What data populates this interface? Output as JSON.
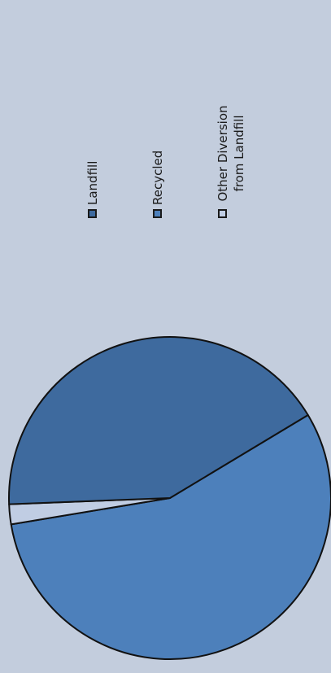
{
  "chart_data": {
    "type": "pie",
    "title": "",
    "legend_position": "right",
    "slices": [
      {
        "label": "Landfill",
        "value": 42,
        "color": "#3e6a9e"
      },
      {
        "label": "Recycled",
        "value": 56,
        "color": "#4d80bb"
      },
      {
        "label": "Other Diversion from Landfill",
        "value": 2,
        "color": "#c0cde3"
      }
    ]
  }
}
